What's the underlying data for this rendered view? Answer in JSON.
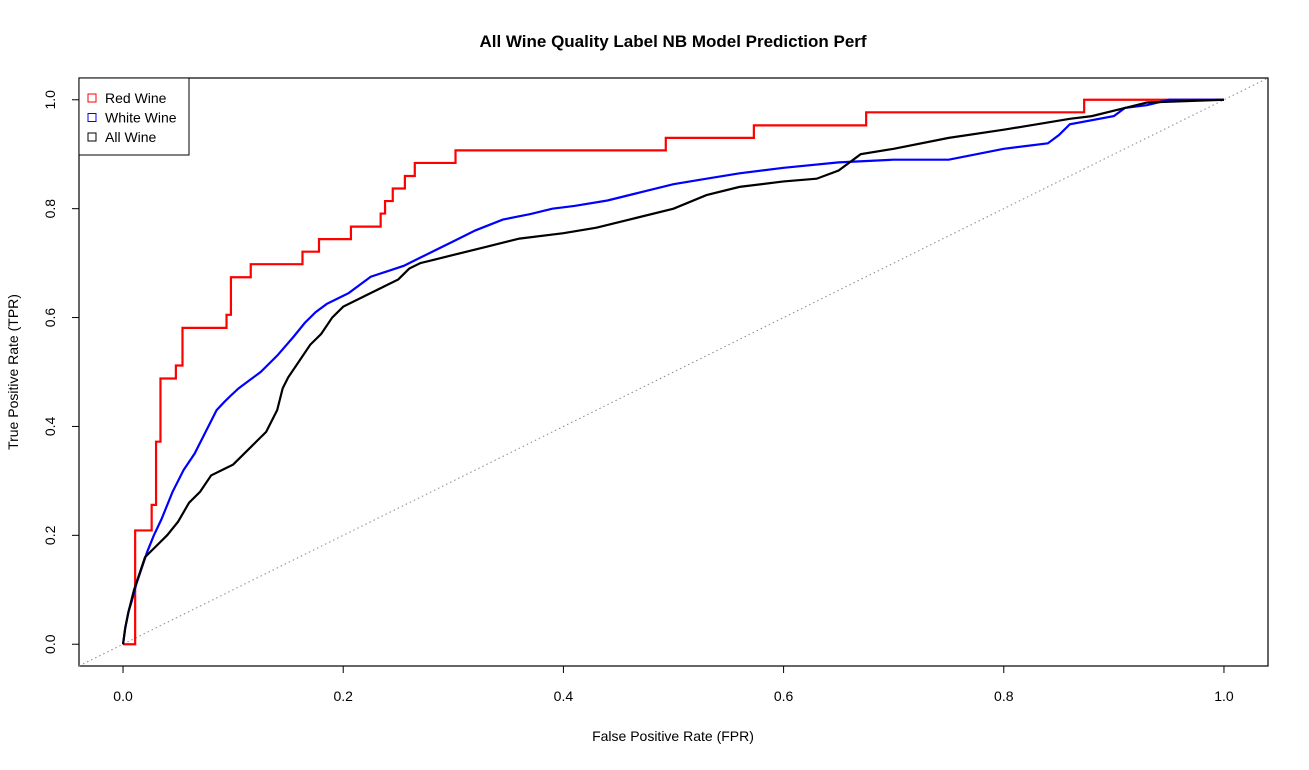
{
  "chart_data": {
    "type": "line",
    "title": "All Wine Quality Label NB Model Prediction Perf",
    "xlabel": "False Positive Rate (FPR)",
    "ylabel": "True Positive Rate (TPR)",
    "xlim": [
      -0.04,
      1.04
    ],
    "ylim": [
      -0.04,
      1.04
    ],
    "x_ticks": [
      "0.0",
      "0.2",
      "0.4",
      "0.6",
      "0.8",
      "1.0"
    ],
    "y_ticks": [
      "0.0",
      "0.2",
      "0.4",
      "0.6",
      "0.8",
      "1.0"
    ],
    "grid": false,
    "legend_position": "top-left",
    "diagonal_reference": {
      "style": "dotted",
      "color": "#888888",
      "from": [
        -0.04,
        -0.04
      ],
      "to": [
        1.04,
        1.04
      ]
    },
    "series": [
      {
        "name": "Red Wine",
        "color": "#ff0000",
        "step": true,
        "x": [
          0.0,
          0.011,
          0.011,
          0.026,
          0.026,
          0.03,
          0.03,
          0.034,
          0.034,
          0.048,
          0.048,
          0.054,
          0.054,
          0.094,
          0.094,
          0.098,
          0.098,
          0.116,
          0.116,
          0.163,
          0.163,
          0.178,
          0.178,
          0.207,
          0.207,
          0.234,
          0.234,
          0.238,
          0.238,
          0.245,
          0.245,
          0.251,
          0.251,
          0.256,
          0.256,
          0.265,
          0.265,
          0.302,
          0.302,
          0.493,
          0.493,
          0.573,
          0.573,
          0.675,
          0.675,
          0.873,
          0.873,
          1.0
        ],
        "y": [
          0.0,
          0.0,
          0.209,
          0.209,
          0.256,
          0.256,
          0.372,
          0.372,
          0.488,
          0.488,
          0.512,
          0.512,
          0.581,
          0.581,
          0.605,
          0.605,
          0.674,
          0.674,
          0.698,
          0.698,
          0.721,
          0.721,
          0.744,
          0.744,
          0.767,
          0.767,
          0.791,
          0.791,
          0.814,
          0.814,
          0.837,
          0.837,
          0.837,
          0.837,
          0.86,
          0.86,
          0.884,
          0.884,
          0.907,
          0.907,
          0.93,
          0.93,
          0.953,
          0.953,
          0.977,
          0.977,
          1.0,
          1.0
        ]
      },
      {
        "name": "White Wine",
        "color": "#0000ff",
        "step": false,
        "x": [
          0.0,
          0.002,
          0.005,
          0.008,
          0.012,
          0.017,
          0.022,
          0.028,
          0.035,
          0.045,
          0.055,
          0.065,
          0.075,
          0.085,
          0.092,
          0.097,
          0.105,
          0.115,
          0.125,
          0.14,
          0.155,
          0.165,
          0.175,
          0.185,
          0.195,
          0.205,
          0.215,
          0.225,
          0.24,
          0.255,
          0.27,
          0.285,
          0.3,
          0.32,
          0.345,
          0.37,
          0.39,
          0.41,
          0.44,
          0.47,
          0.5,
          0.53,
          0.56,
          0.6,
          0.65,
          0.7,
          0.75,
          0.8,
          0.84,
          0.85,
          0.86,
          0.9,
          0.91,
          0.93,
          0.95,
          1.0
        ],
        "y": [
          0.0,
          0.03,
          0.06,
          0.08,
          0.11,
          0.14,
          0.17,
          0.2,
          0.23,
          0.28,
          0.32,
          0.35,
          0.39,
          0.43,
          0.445,
          0.455,
          0.47,
          0.485,
          0.5,
          0.53,
          0.565,
          0.59,
          0.61,
          0.625,
          0.635,
          0.645,
          0.66,
          0.675,
          0.685,
          0.695,
          0.71,
          0.725,
          0.74,
          0.76,
          0.78,
          0.79,
          0.8,
          0.805,
          0.815,
          0.83,
          0.845,
          0.855,
          0.865,
          0.875,
          0.885,
          0.89,
          0.89,
          0.91,
          0.92,
          0.935,
          0.955,
          0.97,
          0.985,
          0.99,
          1.0,
          1.0
        ]
      },
      {
        "name": "All Wine",
        "color": "#000000",
        "step": false,
        "x": [
          0.0,
          0.002,
          0.005,
          0.01,
          0.015,
          0.02,
          0.03,
          0.04,
          0.05,
          0.06,
          0.07,
          0.08,
          0.09,
          0.1,
          0.11,
          0.12,
          0.13,
          0.14,
          0.145,
          0.15,
          0.16,
          0.17,
          0.18,
          0.19,
          0.2,
          0.22,
          0.24,
          0.25,
          0.26,
          0.27,
          0.28,
          0.3,
          0.33,
          0.36,
          0.4,
          0.43,
          0.46,
          0.5,
          0.53,
          0.56,
          0.6,
          0.63,
          0.65,
          0.67,
          0.7,
          0.75,
          0.8,
          0.83,
          0.86,
          0.88,
          0.9,
          0.93,
          1.0
        ],
        "y": [
          0.0,
          0.03,
          0.06,
          0.1,
          0.13,
          0.16,
          0.18,
          0.2,
          0.225,
          0.26,
          0.28,
          0.31,
          0.32,
          0.33,
          0.35,
          0.37,
          0.39,
          0.43,
          0.47,
          0.49,
          0.52,
          0.55,
          0.57,
          0.6,
          0.62,
          0.64,
          0.66,
          0.67,
          0.69,
          0.7,
          0.705,
          0.715,
          0.73,
          0.745,
          0.755,
          0.765,
          0.78,
          0.8,
          0.825,
          0.84,
          0.85,
          0.855,
          0.87,
          0.9,
          0.91,
          0.93,
          0.945,
          0.955,
          0.965,
          0.97,
          0.98,
          0.995,
          1.0
        ]
      }
    ]
  }
}
